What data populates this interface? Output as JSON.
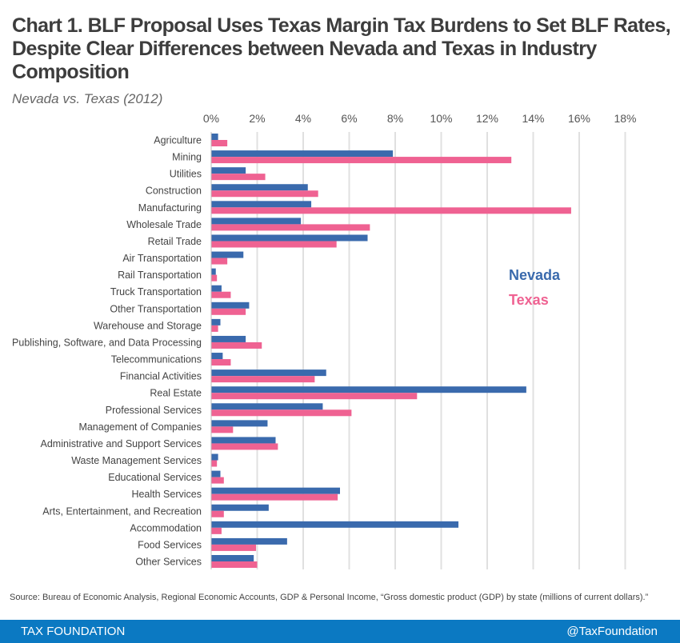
{
  "header": {
    "title": "Chart 1. BLF Proposal Uses Texas Margin Tax Burdens to Set BLF Rates, Despite Clear Differences between Nevada and Texas in Industry Composition",
    "subtitle": "Nevada vs. Texas (2012)"
  },
  "source": "Source: Bureau of Economic Analysis, Regional Economic Accounts, GDP & Personal Income, “Gross domestic product (GDP) by state (millions of current dollars).”",
  "footer": {
    "brand": "TAX FOUNDATION",
    "handle": "@TaxFoundation",
    "color": "#0B79C2"
  },
  "chart_data": {
    "type": "bar",
    "orientation": "horizontal",
    "title": "Chart 1. BLF Proposal Uses Texas Margin Tax Burdens to Set BLF Rates, Despite Clear Differences between Nevada and Texas in Industry Composition",
    "subtitle": "Nevada vs. Texas (2012)",
    "xlabel": "",
    "ylabel": "",
    "xlim": [
      0,
      18
    ],
    "x_ticks": [
      "0%",
      "2%",
      "4%",
      "6%",
      "8%",
      "10%",
      "12%",
      "14%",
      "16%",
      "18%"
    ],
    "x_tick_values": [
      0,
      2,
      4,
      6,
      8,
      10,
      12,
      14,
      16,
      18
    ],
    "grid": true,
    "legend_position": "right-middle",
    "categories": [
      "Agriculture",
      "Mining",
      "Utilities",
      "Construction",
      "Manufacturing",
      "Wholesale Trade",
      "Retail Trade",
      "Air Transportation",
      "Rail Transportation",
      "Truck Transportation",
      "Other Transportation",
      "Warehouse and Storage",
      "Publishing, Software, and Data Processing",
      "Telecommunications",
      "Financial Activities",
      "Real Estate",
      "Professional Services",
      "Management of Companies",
      "Administrative and Support Services",
      "Waste Management Services",
      "Educational Services",
      "Health Services",
      "Arts, Entertainment, and Recreation",
      "Accommodation",
      "Food Services",
      "Other Services"
    ],
    "series": [
      {
        "name": "Nevada",
        "color": "#3A6AAD",
        "values": [
          0.3,
          7.9,
          1.5,
          4.2,
          4.35,
          3.9,
          6.8,
          1.4,
          0.2,
          0.45,
          1.65,
          0.4,
          1.5,
          0.5,
          5.0,
          13.7,
          4.85,
          2.45,
          2.8,
          0.3,
          0.4,
          5.6,
          2.5,
          10.75,
          3.3,
          1.85
        ]
      },
      {
        "name": "Texas",
        "color": "#EF6292",
        "values": [
          0.7,
          13.05,
          2.35,
          4.65,
          15.65,
          6.9,
          5.45,
          0.7,
          0.25,
          0.85,
          1.5,
          0.3,
          2.2,
          0.85,
          4.5,
          8.95,
          6.1,
          0.95,
          2.9,
          0.25,
          0.55,
          5.5,
          0.55,
          0.45,
          1.95,
          2.0
        ]
      }
    ]
  }
}
